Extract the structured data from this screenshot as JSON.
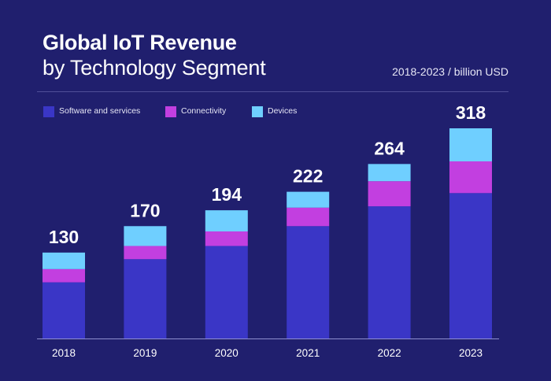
{
  "header": {
    "title_line1": "Global IoT Revenue",
    "title_line2": "by Technology Segment",
    "subtitle": "2018-2023 / billion USD"
  },
  "colors": {
    "background": "#201f6e",
    "software": "#3a36c6",
    "connectivity": "#c23fe0",
    "devices": "#6fcfff",
    "axis": "#8e8ed0"
  },
  "chart_data": {
    "type": "bar",
    "stacked": true,
    "categories": [
      "2018",
      "2019",
      "2020",
      "2021",
      "2022",
      "2023"
    ],
    "totals": [
      130,
      170,
      194,
      222,
      264,
      318
    ],
    "series": [
      {
        "name": "Software and services",
        "color": "#3a36c6",
        "values": [
          85,
          120,
          140,
          170,
          200,
          220
        ]
      },
      {
        "name": "Connectivity",
        "color": "#c23fe0",
        "values": [
          20,
          20,
          22,
          28,
          38,
          48
        ]
      },
      {
        "name": "Devices",
        "color": "#6fcfff",
        "values": [
          25,
          30,
          32,
          24,
          26,
          50
        ]
      }
    ],
    "title": "Global IoT Revenue by Technology Segment",
    "subtitle": "2018-2023 / billion USD",
    "ylim": [
      0,
      318
    ],
    "legend_position": "top-left",
    "grid": false
  }
}
